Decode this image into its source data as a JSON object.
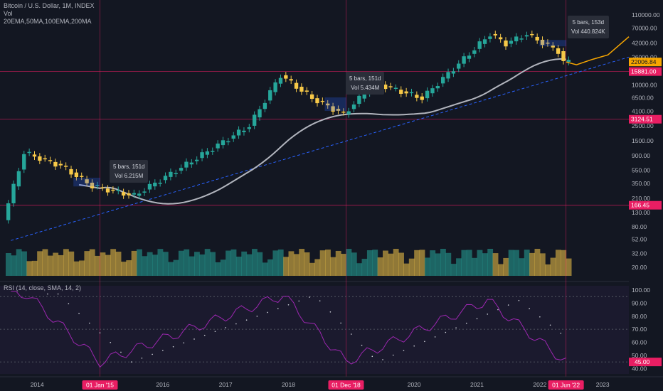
{
  "header": {
    "title": "Bitcoin / U.S. Dollar, 1M, INDEX",
    "vol_label": "Vol",
    "ma_label": "20EMA,50MA,100EMA,200MA"
  },
  "rsi_legend": "RSI (14, close, SMA, 14, 2)",
  "tooltips": [
    {
      "bars": "5 bars, 151d",
      "vol": "Vol 6.215M"
    },
    {
      "bars": "5 bars, 151d",
      "vol": "Vol 5.434M"
    },
    {
      "bars": "5 bars, 153d",
      "vol": "Vol 440.824K"
    }
  ],
  "price_axis_ticks": [
    "110000.00",
    "70000.00",
    "42000.00",
    "26000.00",
    "16000.00",
    "10000.00",
    "6500.00",
    "4100.00",
    "2500.00",
    "1500.00",
    "900.00",
    "550.00",
    "350.00",
    "210.00",
    "130.00",
    "80.00",
    "52.00",
    "32.00",
    "20.00"
  ],
  "price_badges": [
    {
      "text": "22006.84",
      "color": "#f7a600",
      "text_color": "#131722"
    },
    {
      "text": "15881.00",
      "color": "#e91e63",
      "text_color": "#ffffff"
    },
    {
      "text": "3124.51",
      "color": "#e91e63",
      "text_color": "#ffffff"
    },
    {
      "text": "166.45",
      "color": "#e91e63",
      "text_color": "#ffffff"
    }
  ],
  "rsi_axis_ticks": [
    "100.00",
    "90.00",
    "80.00",
    "70.00",
    "60.00",
    "50.00",
    "40.00"
  ],
  "rsi_badge": {
    "text": "45.00",
    "color": "#e91e63"
  },
  "time_axis": {
    "labels": [
      "2014",
      "2016",
      "2017",
      "2018",
      "2020",
      "2021",
      "2022",
      "2023"
    ],
    "markers": [
      "01 Jan '15",
      "01 Dec '18",
      "01 Jun '22"
    ],
    "marker_color": "#e91e63"
  },
  "colors": {
    "background": "#131722",
    "up_candle": "#26a69a",
    "down_candle": "#f7c948",
    "ma_line": "#b2b5be",
    "trend_line": "#2962ff",
    "projection": "#f7a600",
    "rsi_line": "#9c27b0",
    "crosshair": "#e91e63",
    "box": "#2962ff"
  },
  "chart_data": [
    {
      "type": "candlestick",
      "title": "Bitcoin / U.S. Dollar, 1M, INDEX",
      "scale": "log",
      "interval": "1M",
      "x_range": [
        "2013-07",
        "2023-06"
      ],
      "ylim": [
        15,
        150000
      ],
      "anchor_points": [
        {
          "date": "2013-07",
          "price": 100
        },
        {
          "date": "2013-11",
          "price": 1000
        },
        {
          "date": "2014-06",
          "price": 640
        },
        {
          "date": "2014-12",
          "price": 320
        },
        {
          "date": "2015-08",
          "price": 230
        },
        {
          "date": "2016-06",
          "price": 670
        },
        {
          "date": "2017-06",
          "price": 2500
        },
        {
          "date": "2017-12",
          "price": 14000
        },
        {
          "date": "2018-06",
          "price": 6400
        },
        {
          "date": "2018-12",
          "price": 3700
        },
        {
          "date": "2019-06",
          "price": 10800
        },
        {
          "date": "2020-03",
          "price": 6400
        },
        {
          "date": "2020-12",
          "price": 29000
        },
        {
          "date": "2021-04",
          "price": 57000
        },
        {
          "date": "2021-07",
          "price": 41000
        },
        {
          "date": "2021-11",
          "price": 57000
        },
        {
          "date": "2022-05",
          "price": 31800
        },
        {
          "date": "2022-06",
          "price": 22006.84
        }
      ],
      "horizontal_levels": [
        15881.0,
        3124.51,
        166.45
      ],
      "last_price": 22006.84,
      "annotations": [
        "5 bars, 151d / Vol 6.215M",
        "5 bars, 151d / Vol 5.434M",
        "5 bars, 153d / Vol 440.824K"
      ]
    },
    {
      "type": "line",
      "title": "RSI (14, close, SMA, 14, 2)",
      "ylim": [
        38,
        100
      ],
      "bands": [
        45,
        70,
        95
      ],
      "anchor_points": [
        {
          "date": "2013-11",
          "value": 97
        },
        {
          "date": "2015-01",
          "value": 45
        },
        {
          "date": "2017-12",
          "value": 96
        },
        {
          "date": "2018-12",
          "value": 45
        },
        {
          "date": "2021-03",
          "value": 92
        },
        {
          "date": "2022-06",
          "value": 45
        }
      ]
    }
  ]
}
